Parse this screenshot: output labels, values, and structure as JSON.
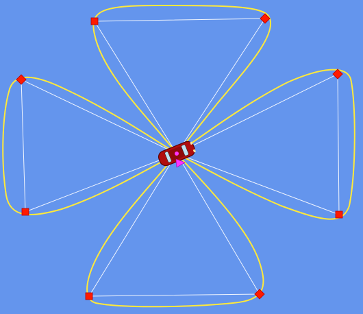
{
  "scene": {
    "background_color": "#6495ed",
    "path_color": "#ffe93a",
    "guide_color": "#ffffff",
    "waypoint_color": "#ff1a00",
    "car_body_color": "#b10d0d",
    "car_window_color": "#bfe3f2",
    "marker_color": "#ff33ff"
  },
  "waypoints": [
    "waypoint",
    "waypoint",
    "waypoint",
    "waypoint",
    "waypoint",
    "waypoint",
    "waypoint",
    "waypoint"
  ],
  "vehicle": {
    "icon": "red-car-icon",
    "heading_marker_icon": "magenta-triangle-icon"
  }
}
